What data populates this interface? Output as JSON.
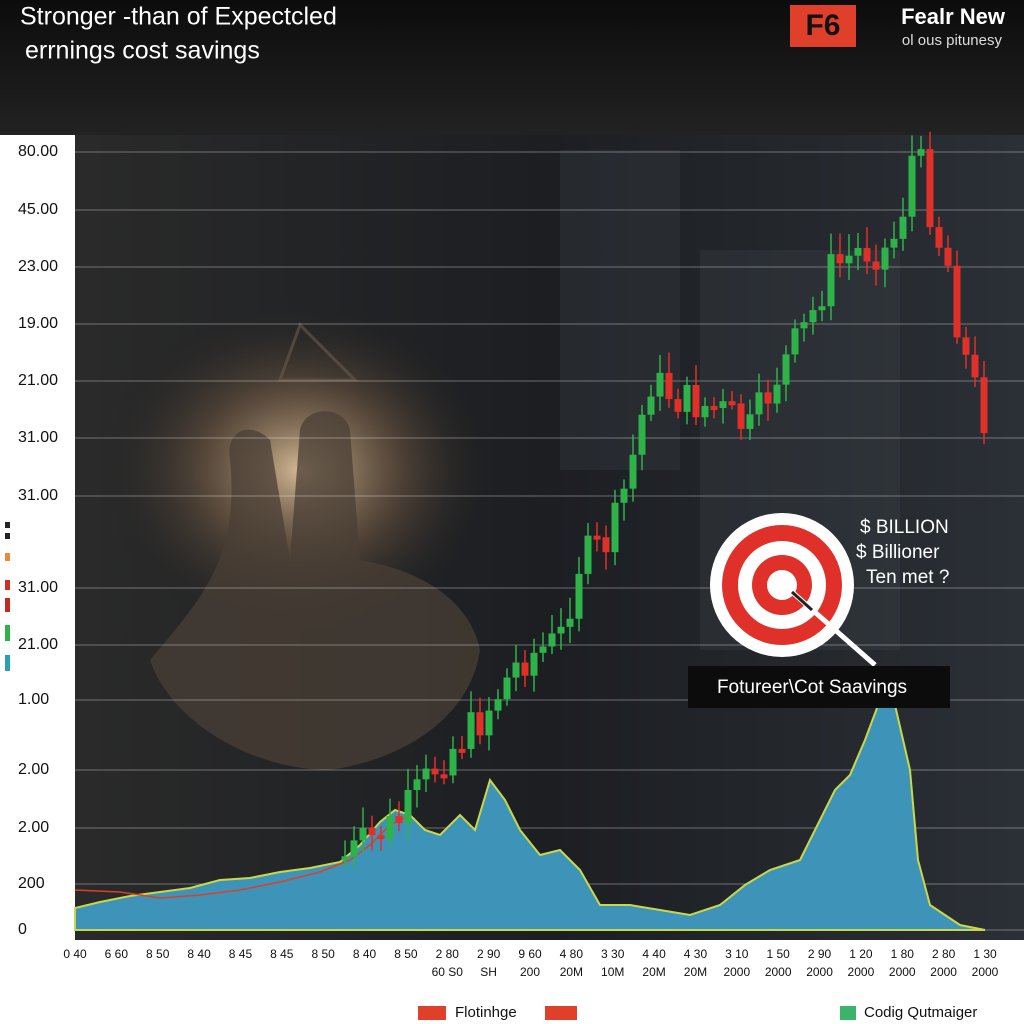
{
  "header": {
    "title_line1": "Stronger -than of Expectcled",
    "title_line2": "errnings cost savings",
    "logo": "F6",
    "brand": "Fealr New",
    "tagline": "ol ous pitunesy"
  },
  "y_axis_labels": [
    "80.00",
    "45.00",
    "23.00",
    "19.00",
    "21.00",
    "31.00",
    "31.00",
    "31.00",
    "21.00",
    "1.00",
    "2.00",
    "2.00",
    "200",
    "0"
  ],
  "x_axis_labels": [
    [
      "0 40"
    ],
    [
      "6 60"
    ],
    [
      "8 50"
    ],
    [
      "8 40"
    ],
    [
      "8 45"
    ],
    [
      "8 45"
    ],
    [
      "8 50"
    ],
    [
      "8 40"
    ],
    [
      "8 50"
    ],
    [
      "2 80",
      "60 S0"
    ],
    [
      "2 90",
      "SH"
    ],
    [
      "9 60",
      "200"
    ],
    [
      "4 80",
      "20M"
    ],
    [
      "3 30",
      "10M"
    ],
    [
      "4 40",
      "20M"
    ],
    [
      "4 30",
      "20M"
    ],
    [
      "3 10",
      "2000"
    ],
    [
      "1 50",
      "2000"
    ],
    [
      "2 90",
      "2000"
    ],
    [
      "1 20",
      "2000"
    ],
    [
      "1 80",
      "2000"
    ],
    [
      "2 80",
      "2000"
    ],
    [
      "1 30",
      "2000"
    ]
  ],
  "annotations": {
    "target_lines": [
      "$ BILLION",
      "$ Billioner",
      "Ten met ?"
    ],
    "callout": "Fotureer\\Cot Saavings"
  },
  "legend": [
    "Flotinhge",
    "Codig Qutmaiger"
  ]
}
